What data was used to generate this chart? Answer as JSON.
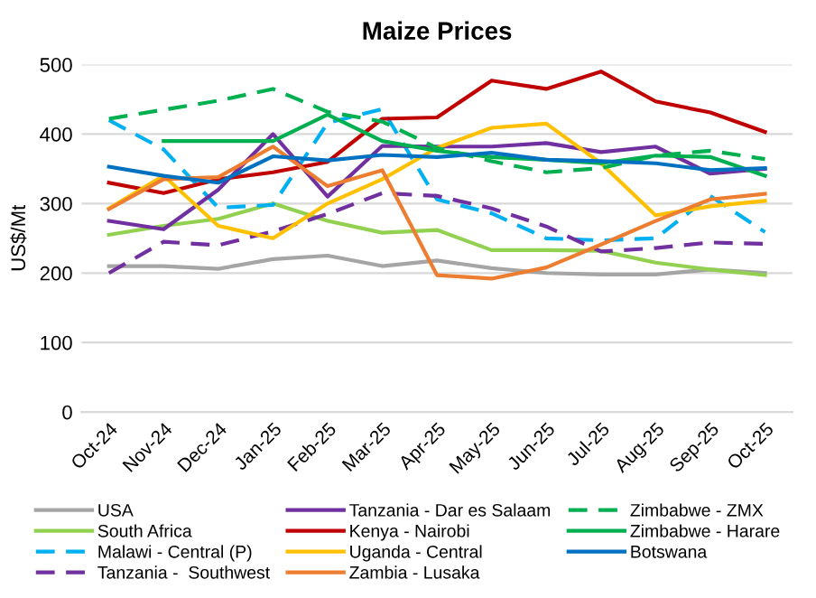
{
  "chart_data": {
    "type": "line",
    "title": "Maize Prices",
    "ylabel": "US$/Mt",
    "categories": [
      "Oct-24",
      "Nov-24",
      "Dec-24",
      "Jan-25",
      "Feb-25",
      "Mar-25",
      "Apr-25",
      "May-25",
      "Jun-25",
      "Jul-25",
      "Aug-25",
      "Sep-25",
      "Oct-25"
    ],
    "ylim": [
      0,
      500
    ],
    "yticks": [
      0,
      100,
      200,
      300,
      400,
      500
    ],
    "grid": "y",
    "legend": "bottom",
    "marker": "none",
    "series": [
      {
        "name": "USA",
        "color": "#a5a5a5",
        "line_style": "solid",
        "values": [
          210,
          210,
          206,
          220,
          225,
          210,
          218,
          207,
          200,
          198,
          198,
          205,
          200
        ]
      },
      {
        "name": "South Africa",
        "color": "#92d050",
        "line_style": "solid",
        "values": [
          255,
          268,
          278,
          300,
          275,
          258,
          262,
          233,
          233,
          232,
          215,
          205,
          197
        ]
      },
      {
        "name": "Malawi - Central (P)",
        "color": "#00b0f0",
        "line_style": "dashed",
        "values": [
          420,
          378,
          294,
          298,
          416,
          436,
          306,
          286,
          250,
          247,
          250,
          311,
          259
        ]
      },
      {
        "name": "Tanzania -  Southwest",
        "color": "#7030a0",
        "line_style": "dashed",
        "values": [
          200,
          245,
          240,
          260,
          285,
          315,
          311,
          293,
          267,
          231,
          236,
          244,
          242
        ]
      },
      {
        "name": "Tanzania - Dar es Salaam",
        "color": "#7030a0",
        "line_style": "solid",
        "values": [
          275,
          263,
          320,
          400,
          310,
          383,
          382,
          382,
          387,
          374,
          382,
          343,
          350
        ]
      },
      {
        "name": "Kenya - Nairobi",
        "color": "#c00000",
        "line_style": "solid",
        "values": [
          330,
          315,
          335,
          345,
          360,
          422,
          424,
          477,
          465,
          490,
          447,
          431,
          403
        ]
      },
      {
        "name": "Uganda - Central",
        "color": "#ffc000",
        "line_style": "solid",
        "values": [
          293,
          340,
          268,
          250,
          300,
          335,
          380,
          409,
          415,
          358,
          283,
          296,
          304
        ]
      },
      {
        "name": "Zambia - Lusaka",
        "color": "#ed7d31",
        "line_style": "solid",
        "values": [
          292,
          335,
          338,
          382,
          325,
          348,
          197,
          192,
          208,
          241,
          275,
          306,
          314
        ]
      },
      {
        "name": "Zimbabwe - ZMX",
        "color": "#00b050",
        "line_style": "dashed",
        "values": [
          422,
          435,
          448,
          465,
          432,
          418,
          380,
          361,
          345,
          351,
          369,
          376,
          364
        ]
      },
      {
        "name": "Zimbabwe - Harare",
        "color": "#00b050",
        "line_style": "solid",
        "values": [
          null,
          390,
          390,
          390,
          428,
          390,
          376,
          367,
          363,
          358,
          369,
          367,
          340
        ]
      },
      {
        "name": "Botswana",
        "color": "#0070c0",
        "line_style": "solid",
        "values": [
          353,
          340,
          330,
          368,
          362,
          370,
          367,
          373,
          363,
          361,
          358,
          348,
          351
        ]
      }
    ]
  }
}
